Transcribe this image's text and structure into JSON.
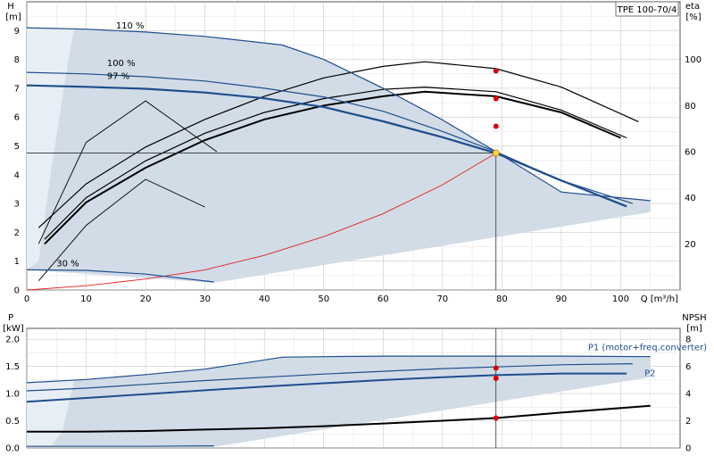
{
  "model_label": "TPE 100-70/4",
  "chart_data": [
    {
      "type": "line",
      "name_key": "head",
      "y_axis": {
        "label_top": "H",
        "label_unit": "[m]",
        "lim": [
          0,
          10
        ],
        "ticks": [
          0,
          1,
          2,
          3,
          4,
          5,
          6,
          7,
          8,
          9
        ]
      },
      "y2_axis": {
        "label_top": "eta",
        "label_unit": "[%]",
        "lim": [
          0,
          125
        ],
        "ticks": [
          20,
          40,
          60,
          80,
          100
        ]
      },
      "x_axis": {
        "label": "Q [m³/h]",
        "lim": [
          0,
          110
        ],
        "ticks": [
          0,
          10,
          20,
          30,
          40,
          50,
          60,
          70,
          80,
          90,
          100
        ]
      },
      "grid": true,
      "speed_labels": [
        "110 %",
        "100 %",
        "97 %",
        "30 %"
      ],
      "series": [
        {
          "name": "110 %",
          "x": [
            0,
            10,
            20,
            30,
            43,
            50,
            60,
            70,
            79,
            90,
            105
          ],
          "y": [
            9.1,
            9.05,
            8.95,
            8.8,
            8.5,
            8.0,
            7.0,
            5.9,
            4.8,
            3.4,
            3.1
          ]
        },
        {
          "name": "100 %",
          "x": [
            0,
            10,
            20,
            30,
            40,
            50,
            60,
            70,
            79,
            90,
            102
          ],
          "y": [
            7.55,
            7.5,
            7.4,
            7.25,
            7.0,
            6.7,
            6.2,
            5.5,
            4.8,
            3.8,
            3.0
          ]
        },
        {
          "name": "97 %",
          "x": [
            0,
            10,
            20,
            30,
            40,
            50,
            60,
            70,
            79,
            90,
            101
          ],
          "y": [
            7.1,
            7.05,
            6.98,
            6.85,
            6.65,
            6.35,
            5.85,
            5.3,
            4.75,
            3.8,
            2.9
          ]
        },
        {
          "name": "30 %",
          "x": [
            0,
            10,
            20,
            31.5
          ],
          "y": [
            0.7,
            0.68,
            0.55,
            0.28
          ]
        }
      ],
      "efficiency_curves": [
        {
          "x": [
            2,
            10,
            20,
            30,
            40,
            50,
            60,
            67,
            79,
            90,
            103
          ],
          "y": [
            27,
            46,
            62,
            74,
            84,
            92,
            97,
            99,
            96,
            88,
            73
          ]
        },
        {
          "x": [
            3,
            10,
            20,
            30,
            40,
            50,
            60,
            67,
            79,
            90,
            101
          ],
          "y": [
            22,
            40,
            56,
            68,
            77,
            83,
            87,
            88,
            86,
            78,
            66
          ]
        },
        {
          "x": [
            3,
            10,
            20,
            30,
            40,
            50,
            60,
            67,
            79,
            90,
            100
          ],
          "y": [
            20,
            38,
            53,
            65,
            74,
            80,
            84,
            86,
            84,
            77,
            66
          ]
        },
        {
          "x": [
            2,
            10,
            20,
            32
          ],
          "y": [
            20,
            64,
            82,
            60
          ]
        },
        {
          "x": [
            2,
            10,
            20,
            30
          ],
          "y": [
            4,
            28,
            48,
            36
          ]
        }
      ],
      "system_curve": {
        "x": [
          0,
          10,
          20,
          30,
          40,
          50,
          60,
          70,
          79
        ],
        "y": [
          0,
          0.15,
          0.38,
          0.7,
          1.2,
          1.85,
          2.65,
          3.65,
          4.75
        ]
      },
      "operating_point": {
        "x": 79,
        "y": 4.75
      },
      "op_markers": [
        {
          "x": 79,
          "eta": 95
        },
        {
          "x": 79,
          "eta": 83
        },
        {
          "x": 79,
          "eta": 71
        }
      ]
    },
    {
      "type": "line",
      "name_key": "power",
      "y_axis": {
        "label_top": "P",
        "label_unit": "[kW]",
        "lim": [
          0,
          2.2
        ],
        "ticks": [
          0,
          0.5,
          1.0,
          1.5,
          2.0
        ],
        "tick_labels": [
          "0.0",
          "0.5",
          "1.0",
          "1.5",
          "2.0"
        ]
      },
      "y2_axis": {
        "label_top": "NPSH",
        "label_unit": "[m]",
        "lim": [
          0,
          8.8
        ],
        "ticks": [
          0,
          2,
          4,
          6,
          8
        ]
      },
      "x_axis": {
        "lim": [
          0,
          110
        ],
        "ticks": [
          0,
          10,
          20,
          30,
          40,
          50,
          60,
          70,
          80,
          90,
          100
        ]
      },
      "grid": true,
      "curve_labels": [
        "P1 (motor+freq.converter)",
        "P2"
      ],
      "series": [
        {
          "name": "P1 (motor+freq.converter)",
          "x": [
            0,
            10,
            20,
            30,
            43,
            50,
            60,
            70,
            79,
            90,
            105
          ],
          "y": [
            1.2,
            1.26,
            1.35,
            1.45,
            1.67,
            1.68,
            1.69,
            1.69,
            1.69,
            1.69,
            1.68
          ]
        },
        {
          "name": "P2",
          "x": [
            0,
            10,
            20,
            30,
            40,
            50,
            60,
            70,
            79,
            90,
            102
          ],
          "y": [
            1.05,
            1.1,
            1.17,
            1.24,
            1.3,
            1.36,
            1.41,
            1.46,
            1.49,
            1.53,
            1.55
          ]
        },
        {
          "name": "",
          "x": [
            0,
            10,
            20,
            30,
            40,
            50,
            60,
            70,
            79,
            90,
            101
          ],
          "y": [
            0.85,
            0.92,
            0.99,
            1.06,
            1.13,
            1.19,
            1.25,
            1.3,
            1.34,
            1.37,
            1.37
          ]
        },
        {
          "name": "",
          "x": [
            0,
            10,
            20,
            31.5
          ],
          "y": [
            0.03,
            0.03,
            0.03,
            0.04
          ]
        }
      ],
      "npsh_curve": {
        "x": [
          0,
          10,
          20,
          30,
          40,
          50,
          60,
          70,
          79,
          90,
          105
        ],
        "y": [
          1.2,
          1.2,
          1.25,
          1.35,
          1.45,
          1.6,
          1.8,
          2.0,
          2.2,
          2.6,
          3.1
        ]
      },
      "op_markers": [
        {
          "x": 79,
          "p": 1.47
        },
        {
          "x": 79,
          "p": 1.28
        },
        {
          "x": 79,
          "npsh": 2.2
        }
      ]
    }
  ]
}
